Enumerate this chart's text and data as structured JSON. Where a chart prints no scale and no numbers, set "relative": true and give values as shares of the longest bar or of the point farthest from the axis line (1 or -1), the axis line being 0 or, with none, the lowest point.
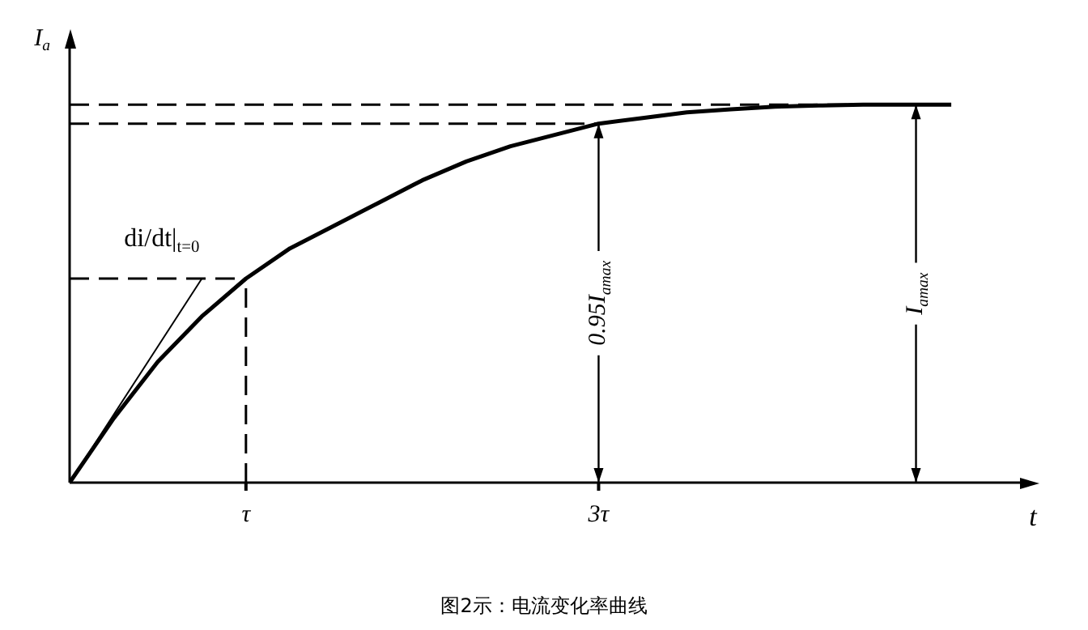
{
  "chart_data": {
    "type": "line",
    "title": "图2示：电流变化率曲线",
    "xlabel": "t",
    "ylabel": "I$_{a}$",
    "relative": true,
    "categories": [
      null,
      null,
      null,
      null,
      "τ",
      null,
      null,
      null,
      null,
      null,
      null,
      null,
      "3τ",
      null,
      null,
      null,
      null,
      null,
      null,
      null,
      null,
      null,
      null
    ],
    "grid": false,
    "legend": false,
    "marker": "none",
    "line_style": "solid",
    "series": [
      {
        "color": "#000000",
        "values": [
          0,
          0.17,
          0.32,
          0.44,
          0.54,
          0.62,
          0.68,
          0.74,
          0.8,
          0.85,
          0.89,
          0.92,
          0.95,
          0.965,
          0.98,
          0.988,
          0.995,
          0.998,
          1,
          1,
          1,
          null,
          null
        ]
      },
      {
        "name": "di/dt|$_{t=0}$",
        "color": "#000000",
        "values": [
          0,
          0.18,
          0.36,
          0.54,
          null,
          null,
          null,
          null,
          null,
          null,
          null,
          null,
          null,
          null,
          null,
          null,
          null,
          null,
          null,
          null,
          null,
          null,
          null
        ]
      }
    ],
    "ref_lines": [
      {
        "axis": "y",
        "value": 1,
        "line_style": "dashed",
        "color": "#000000"
      },
      {
        "axis": "y",
        "value": 0.95,
        "line_style": "dashed",
        "color": "#000000"
      },
      {
        "axis": "y",
        "value": 0.54,
        "line_style": "dashed",
        "color": "#000000"
      },
      {
        "axis": "x",
        "value": "τ",
        "line_style": "dashed",
        "color": "#000000"
      }
    ],
    "annotations": [
      {
        "text": "0.95I$_{amax}$",
        "x": "3τ",
        "y": 0.95
      },
      {
        "text": "I$_{amax}$",
        "y": 1
      }
    ]
  }
}
